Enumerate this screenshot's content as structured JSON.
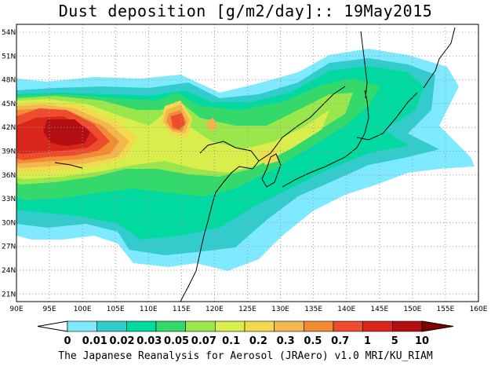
{
  "map": {
    "title": "Dust deposition [g/m2/day]:: 19May2015",
    "footer": "The Japanese Reanalysis for Aerosol (JRAero) v1.0 MRI/KU_RIAM",
    "lat_labels": [
      "54N",
      "51N",
      "48N",
      "45N",
      "42N",
      "39N",
      "36N",
      "33N",
      "30N",
      "27N",
      "24N",
      "21N"
    ],
    "lon_labels": [
      "90E",
      "95E",
      "100E",
      "105E",
      "110E",
      "115E",
      "120E",
      "125E",
      "130E",
      "135E",
      "140E",
      "145E",
      "150E",
      "155E",
      "160E"
    ],
    "colorbar": {
      "labels": [
        "0",
        "0.01",
        "0.02",
        "0.03",
        "0.05",
        "0.07",
        "0.1",
        "0.2",
        "0.3",
        "0.5",
        "0.7",
        "1",
        "5",
        "10"
      ],
      "colors": [
        "#ffffff",
        "#7fe9ff",
        "#33cccc",
        "#00d9a0",
        "#33d96a",
        "#99e64d",
        "#d9ee4d",
        "#f2d94d",
        "#f2b84d",
        "#f28c33",
        "#ee4c2e",
        "#d9261a",
        "#b30f12",
        "#800000"
      ]
    }
  }
}
